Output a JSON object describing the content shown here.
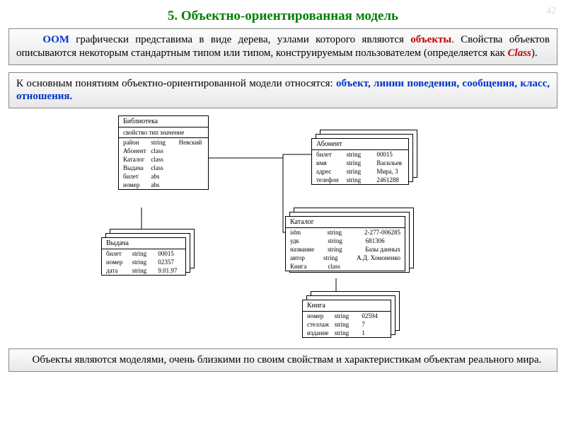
{
  "slide_number": "42",
  "title": "5. Объектно-ориентированная модель",
  "panel1": {
    "oom": "ООМ",
    "t1a": " графически представима в виде дерева, узлами которого являются ",
    "objects": "объекты",
    "t1b": ". Свойства объектов описываются некоторым стандартным типом или типом, конструируемым пользователем (определяется как ",
    "class": "Class",
    "t1c": ")."
  },
  "panel2": {
    "t2a": "К основным понятиям объектно-ориентированной модели относятся: ",
    "concepts": "объект, линии поведения, сообщения, класс, отношения."
  },
  "panel3": {
    "t3": "Объекты являются моделями, очень близкими по своим свойствам и характеристикам объектам реального мира."
  },
  "diagram": {
    "library": {
      "title": "Библиотека",
      "sub": "свойство  тип  значение",
      "rows": [
        [
          "район",
          "string",
          "Невский"
        ],
        [
          "Абонент",
          "class",
          ""
        ],
        [
          "Каталог",
          "class",
          ""
        ],
        [
          "Выдача",
          "class",
          ""
        ],
        [
          "билет",
          "abs",
          ""
        ],
        [
          "номер",
          "abs",
          ""
        ]
      ]
    },
    "abonent": {
      "title": "Абонент",
      "rows": [
        [
          "билет",
          "string",
          "00015"
        ],
        [
          "имя",
          "string",
          "Васильев"
        ],
        [
          "адрес",
          "string",
          "Мира, 3"
        ],
        [
          "телефон",
          "string",
          "2461288"
        ]
      ]
    },
    "vydacha": {
      "title": "Выдача",
      "rows": [
        [
          "билет",
          "string",
          "00015"
        ],
        [
          "номер",
          "string",
          "02357"
        ],
        [
          "дата",
          "string",
          "9.01.97"
        ]
      ]
    },
    "katalog": {
      "title": "Каталог",
      "rows": [
        [
          "isbn",
          "string",
          "2-277-006285"
        ],
        [
          "удк",
          "string",
          "681306"
        ],
        [
          "название",
          "string",
          "Базы данных"
        ],
        [
          "автор",
          "string",
          "А.Д. Хомоненко"
        ],
        [
          "Книга",
          "class",
          ""
        ]
      ]
    },
    "kniga": {
      "title": "Книга",
      "rows": [
        [
          "номер",
          "string",
          "02594"
        ],
        [
          "стеллаж",
          "string",
          "7"
        ],
        [
          "издание",
          "string",
          "1"
        ]
      ]
    },
    "colors": {
      "line": "#000000"
    }
  }
}
